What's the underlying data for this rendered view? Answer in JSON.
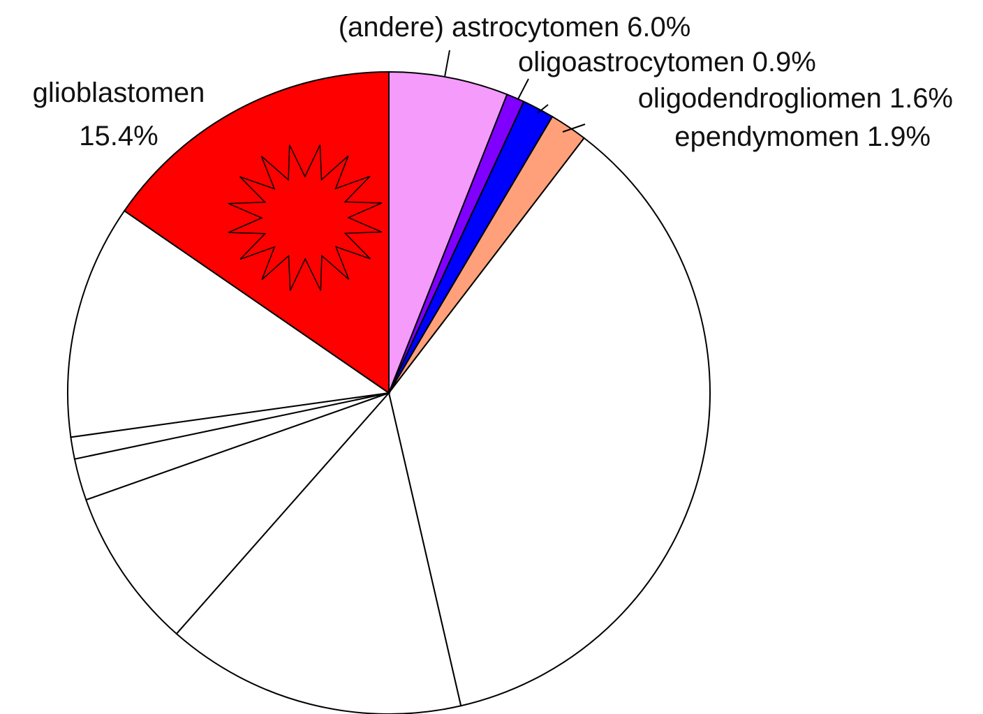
{
  "chart_data": {
    "type": "pie",
    "categories": [
      "(andere) astrocytomen",
      "oligoastrocytomen",
      "oligodendrogliomen",
      "ependymomen",
      null,
      null,
      null,
      null,
      null,
      null,
      "glioblastomen"
    ],
    "values": [
      6.0,
      0.9,
      1.6,
      1.9,
      36.0,
      15.1,
      8.1,
      2.1,
      1.1,
      11.8,
      15.4
    ],
    "value_labels": [
      "6.0%",
      "0.9%",
      "1.6%",
      "1.9%",
      null,
      null,
      null,
      null,
      null,
      null,
      "15.4%"
    ],
    "colors": [
      "#f49bfb",
      "#8000ff",
      "#0000ff",
      "#ffa07a",
      "#ffffff",
      "#ffffff",
      "#ffffff",
      "#ffffff",
      "#ffffff",
      "#ffffff",
      "#ff0000"
    ]
  }
}
